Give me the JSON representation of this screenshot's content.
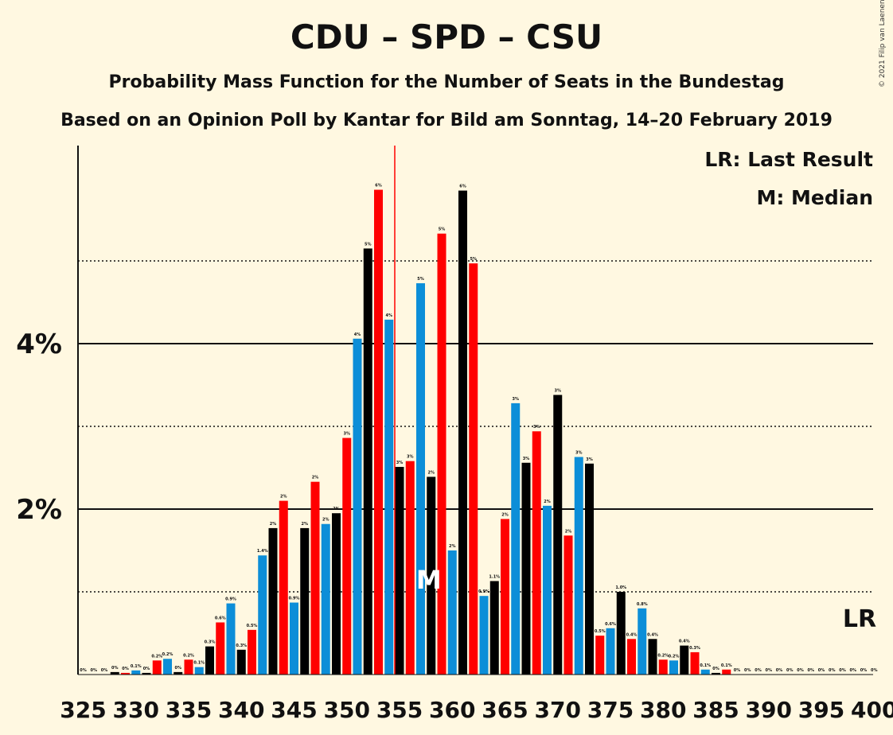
{
  "title": "CDU – SPD – CSU",
  "subtitle": "Probability Mass Function for the Number of Seats in the Bundestag",
  "subtitle2": "Based on an Opinion Poll by Kantar for Bild am Sonntag, 14–20 February 2019",
  "copyright": "© 2021 Filip van Laenen",
  "legend": {
    "lr": "LR: Last Result",
    "m": "M: Median"
  },
  "markers": {
    "lr_label": "LR",
    "median_label": "M"
  },
  "colors": {
    "background": "#FFF8E1",
    "red": "#FF0000",
    "blue": "#0C8ED8",
    "black": "#000000"
  },
  "chart_data": {
    "type": "bar",
    "xlabel": "",
    "ylabel": "",
    "xlim": [
      325,
      400
    ],
    "ylim": [
      0,
      6.3
    ],
    "x_ticks": [
      325,
      330,
      335,
      340,
      345,
      350,
      355,
      360,
      365,
      370,
      375,
      380,
      385,
      390,
      395,
      400
    ],
    "y_ticks": [
      {
        "value": 2,
        "label": "2%"
      },
      {
        "value": 4,
        "label": "4%"
      }
    ],
    "dotted_gridlines": [
      1,
      3,
      5
    ],
    "majority_line_x": 355,
    "median_seat": 358,
    "last_result_seat": 399,
    "color_cycle": [
      "black",
      "red",
      "blue"
    ],
    "seats": [
      325,
      326,
      327,
      328,
      329,
      330,
      331,
      332,
      333,
      334,
      335,
      336,
      337,
      338,
      339,
      340,
      341,
      342,
      343,
      344,
      345,
      346,
      347,
      348,
      349,
      350,
      351,
      352,
      353,
      354,
      355,
      356,
      357,
      358,
      359,
      360,
      361,
      362,
      363,
      364,
      365,
      366,
      367,
      368,
      369,
      370,
      371,
      372,
      373,
      374,
      375,
      376,
      377,
      378,
      379,
      380,
      381,
      382,
      383,
      384,
      385,
      386,
      387,
      388,
      389,
      390,
      391,
      392,
      393,
      394,
      395,
      396,
      397,
      398,
      399,
      400
    ],
    "values": [
      0.0,
      0.0,
      0.0,
      0.03,
      0.02,
      0.05,
      0.02,
      0.17,
      0.19,
      0.03,
      0.18,
      0.09,
      0.34,
      0.63,
      0.86,
      0.3,
      0.54,
      1.44,
      1.77,
      2.1,
      0.87,
      1.77,
      2.33,
      1.82,
      1.95,
      2.86,
      4.06,
      5.15,
      5.86,
      4.29,
      2.51,
      2.58,
      4.73,
      2.39,
      5.33,
      1.5,
      5.85,
      4.97,
      0.95,
      1.13,
      1.88,
      3.28,
      2.56,
      2.94,
      2.04,
      3.38,
      1.68,
      2.63,
      2.55,
      0.47,
      0.56,
      1.0,
      0.43,
      0.8,
      0.43,
      0.18,
      0.17,
      0.35,
      0.27,
      0.06,
      0.02,
      0.06,
      0.0,
      0.0,
      0.0,
      0.0,
      0.0,
      0.0,
      0.0,
      0.0,
      0.0,
      0.0,
      0.0,
      0.0,
      0.0,
      0.0
    ],
    "value_labels": [
      "0%",
      "0%",
      "0%",
      "0%",
      "0%",
      "0.1%",
      "0%",
      "0.2%",
      "0.2%",
      "0%",
      "0.2%",
      "0.1%",
      "0.3%",
      "0.6%",
      "0.9%",
      "0.3%",
      "0.5%",
      "1.4%",
      "2%",
      "2%",
      "0.9%",
      "2%",
      "2%",
      "2%",
      "2%",
      "3%",
      "4%",
      "5%",
      "6%",
      "4%",
      "3%",
      "3%",
      "5%",
      "2%",
      "5%",
      "2%",
      "6%",
      "5%",
      "0.9%",
      "1.1%",
      "2%",
      "3%",
      "3%",
      "3%",
      "2%",
      "3%",
      "2%",
      "3%",
      "3%",
      "0.5%",
      "0.6%",
      "1.0%",
      "0.4%",
      "0.8%",
      "0.4%",
      "0.2%",
      "0.2%",
      "0.4%",
      "0.3%",
      "0.1%",
      "0%",
      "0.1%",
      "0%",
      "0%",
      "0%",
      "0%",
      "0%",
      "0%",
      "0%",
      "0%",
      "0%",
      "0%",
      "0%",
      "0%",
      "0%",
      "0%"
    ]
  }
}
